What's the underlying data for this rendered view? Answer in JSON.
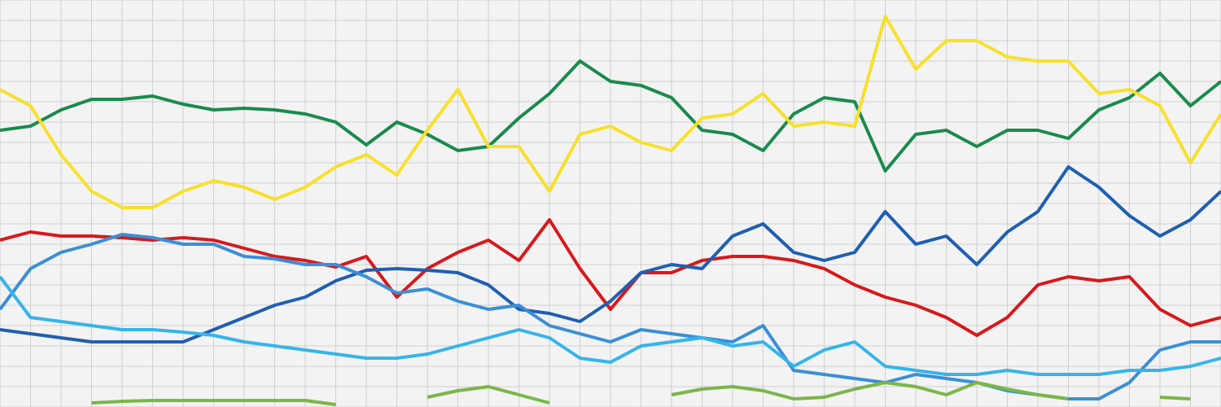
{
  "chart_data": {
    "type": "line",
    "x": [
      0,
      1,
      2,
      3,
      4,
      5,
      6,
      7,
      8,
      9,
      10,
      11,
      12,
      13,
      14,
      15,
      16,
      17,
      18,
      19,
      20,
      21,
      22,
      23,
      24,
      25,
      26,
      27,
      28,
      29,
      30,
      31,
      32,
      33,
      34,
      35,
      36,
      37,
      38,
      39,
      40
    ],
    "xlim": [
      0,
      40
    ],
    "xticks": [
      0,
      1,
      2,
      3,
      4,
      5,
      6,
      7,
      8,
      9,
      10,
      11,
      12,
      13,
      14,
      15,
      16,
      17,
      18,
      19,
      20,
      21,
      22,
      23,
      24,
      25,
      26,
      27,
      28,
      29,
      30,
      31,
      32,
      33,
      34,
      35,
      36,
      37,
      38,
      39,
      40
    ],
    "ylim": [
      0,
      20
    ],
    "yticks": [
      0,
      1,
      2,
      3,
      4,
      5,
      6,
      7,
      8,
      9,
      10,
      11,
      12,
      13,
      14,
      15,
      16,
      17,
      18,
      19,
      20
    ],
    "grid": true,
    "series": [
      {
        "color": "#1a8a4e",
        "values": [
          13.6,
          13.8,
          14.6,
          15.12,
          15.12,
          15.28,
          14.88,
          14.6,
          14.68,
          14.6,
          14.4,
          14,
          12.88,
          14,
          13.4,
          12.6,
          12.8,
          14.2,
          15.4,
          17,
          16,
          15.8,
          15.2,
          13.6,
          13.4,
          12.6,
          14.4,
          15.2,
          15,
          11.6,
          13.4,
          13.6,
          12.8,
          13.6,
          13.6,
          13.2,
          14.6,
          15.2,
          16.4,
          14.8,
          16
        ]
      },
      {
        "color": "#f7e02a",
        "values": [
          15.6,
          14.8,
          12.4,
          10.6,
          9.8,
          9.8,
          10.6,
          11.12,
          10.8,
          10.2,
          10.8,
          11.8,
          12.4,
          11.4,
          13.6,
          15.6,
          12.8,
          12.8,
          10.6,
          13.4,
          13.8,
          13,
          12.6,
          14.2,
          14.4,
          15.4,
          13.8,
          14,
          13.8,
          19.2,
          16.6,
          18,
          18,
          17.2,
          17,
          17,
          15.4,
          15.6,
          14.8,
          12,
          14.4
        ]
      },
      {
        "color": "#d7191c",
        "values": [
          8.2,
          8.6,
          8.4,
          8.4,
          8.32,
          8.2,
          8.32,
          8.2,
          7.8,
          7.4,
          7.2,
          6.88,
          7.4,
          5.4,
          6.8,
          7.6,
          8.2,
          7.2,
          9.2,
          6.8,
          4.8,
          6.6,
          6.6,
          7.2,
          7.4,
          7.4,
          7.2,
          6.8,
          6,
          5.4,
          5,
          4.4,
          3.52,
          4.4,
          6,
          6.4,
          6.2,
          6.4,
          4.8,
          4,
          4.4
        ]
      },
      {
        "color": "#1f5fb0",
        "values": [
          3.8,
          3.6,
          3.4,
          3.2,
          3.2,
          3.2,
          3.2,
          3.8,
          4.4,
          5,
          5.4,
          6.2,
          6.72,
          6.8,
          6.72,
          6.6,
          6,
          4.8,
          4.6,
          4.2,
          5.2,
          6.6,
          7,
          6.8,
          8.4,
          9,
          7.6,
          7.2,
          7.6,
          9.6,
          8,
          8.4,
          7,
          8.6,
          9.6,
          11.8,
          10.8,
          9.4,
          8.4,
          9.2,
          10.6
        ]
      },
      {
        "color": "#3a8fd6",
        "values": [
          4.8,
          6.8,
          7.6,
          8,
          8.48,
          8.32,
          8,
          8,
          7.4,
          7.28,
          7,
          7,
          6.4,
          5.6,
          5.8,
          5.2,
          4.8,
          5,
          4,
          3.6,
          3.2,
          3.8,
          3.6,
          3.4,
          3.2,
          4,
          1.8,
          1.6,
          1.4,
          1.2,
          1.6,
          1.4,
          1.2,
          0.8,
          0.6,
          0.4,
          0.4,
          1.2,
          2.8,
          3.2,
          3.2
        ]
      },
      {
        "color": "#36b4ea",
        "values": [
          6.4,
          4.4,
          4.2,
          4,
          3.8,
          3.8,
          3.68,
          3.52,
          3.2,
          3,
          2.8,
          2.6,
          2.4,
          2.4,
          2.6,
          3,
          3.4,
          3.8,
          3.4,
          2.4,
          2.2,
          3,
          3.2,
          3.4,
          3,
          3.2,
          2,
          2.8,
          3.2,
          2,
          1.8,
          1.6,
          1.6,
          1.8,
          1.6,
          1.6,
          1.6,
          1.8,
          1.8,
          2,
          2.4
        ]
      },
      {
        "color": "#7ab648",
        "values": [
          null,
          null,
          null,
          0.2,
          0.28,
          0.32,
          0.32,
          0.32,
          0.32,
          0.32,
          0.32,
          0.12,
          null,
          null,
          0.48,
          0.8,
          1,
          0.6,
          0.2,
          null,
          null,
          null,
          0.6,
          0.88,
          1,
          0.8,
          0.4,
          0.48,
          0.88,
          1.2,
          1,
          0.6,
          1.2,
          0.88,
          0.6,
          0.4,
          null,
          null,
          0.48,
          0.4,
          null
        ]
      }
    ]
  }
}
